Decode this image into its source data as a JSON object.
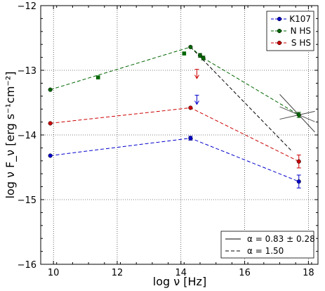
{
  "chart_data": {
    "type": "scatter",
    "xlabel": "log ν [Hz]",
    "ylabel": "log ν F_ν [erg s⁻¹cm⁻²]",
    "xlim": [
      9.6,
      18.3
    ],
    "ylim": [
      -16,
      -12
    ],
    "xticks": [
      10,
      12,
      14,
      16,
      18
    ],
    "yticks": [
      -12,
      -13,
      -14,
      -15,
      -16
    ],
    "grid": true,
    "series": [
      {
        "name": "K107",
        "color": "#0000cc",
        "line": "dashed",
        "points": [
          {
            "x": 9.9,
            "y": -14.32,
            "yerr": 0
          },
          {
            "x": 14.3,
            "y": -14.05,
            "yerr": 0.03
          },
          {
            "x": 17.7,
            "y": -14.72,
            "yerr": 0.1
          }
        ],
        "limits": [
          {
            "x": 14.5,
            "y": -13.45,
            "dir": "upper"
          }
        ]
      },
      {
        "name": "N HS",
        "color": "#006600",
        "line": "dashed",
        "points": [
          {
            "x": 9.9,
            "y": -13.3,
            "yerr": 0
          },
          {
            "x": 14.3,
            "y": -12.64,
            "yerr": 0
          },
          {
            "x": 14.6,
            "y": -12.77,
            "yerr": 0.03
          },
          {
            "x": 14.7,
            "y": -12.81,
            "yerr": 0.03
          },
          {
            "x": 17.7,
            "y": -13.69,
            "yerr": 0.04
          }
        ],
        "extra_points": [
          {
            "x": 11.4,
            "y": -13.11
          },
          {
            "x": 14.1,
            "y": -12.74
          }
        ]
      },
      {
        "name": "S HS",
        "color": "#cc0000",
        "line": "dashed",
        "points": [
          {
            "x": 9.9,
            "y": -13.82,
            "yerr": 0
          },
          {
            "x": 14.3,
            "y": -13.58,
            "yerr": 0
          },
          {
            "x": 17.7,
            "y": -14.41,
            "yerr": 0.1
          }
        ],
        "limits": [
          {
            "x": 14.5,
            "y": -13.05,
            "dir": "upper"
          }
        ]
      }
    ],
    "fit_lines": [
      {
        "label": "α = 0.83 ± 0.28",
        "style": "solid"
      },
      {
        "label": "α = 1.50",
        "style": "dashed",
        "from": [
          14.3,
          -12.64
        ],
        "to": [
          17.5,
          -14.26
        ]
      }
    ],
    "butterfly": {
      "x": 17.7,
      "y": -13.69,
      "x_from": 17.1,
      "x_to": 18.2,
      "slope_low": -0.53,
      "slope_high": 0.11
    }
  }
}
